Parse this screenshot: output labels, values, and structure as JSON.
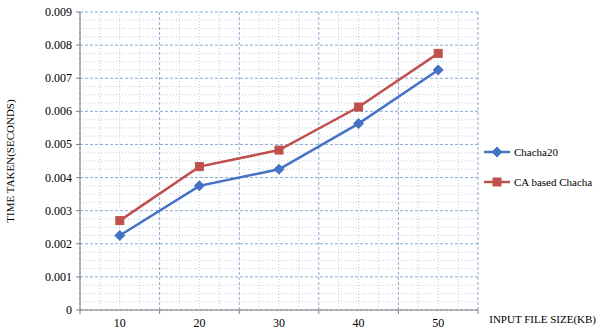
{
  "chart_data": {
    "type": "line",
    "x_label": "INPUT FILE SIZE(KB)",
    "y_label": "TIME TAKEN(SECONDS)",
    "categories": [
      "10",
      "20",
      "30",
      "40",
      "50"
    ],
    "series": [
      {
        "name": "Chacha20",
        "color": "#4472c4",
        "marker": "diamond",
        "line_style": "solid",
        "values": [
          0.00225,
          0.00375,
          0.00425,
          0.00563,
          0.00725
        ]
      },
      {
        "name": "CA based Chacha",
        "color": "#c0504d",
        "marker": "square",
        "line_style": "solid",
        "values": [
          0.0027,
          0.00433,
          0.00483,
          0.00613,
          0.00775
        ]
      }
    ],
    "ylim": [
      0,
      0.009
    ],
    "yticks": [
      0,
      0.001,
      0.002,
      0.003,
      0.004,
      0.005,
      0.006,
      0.007,
      0.008,
      0.009
    ],
    "grid": true,
    "legend": "right"
  }
}
